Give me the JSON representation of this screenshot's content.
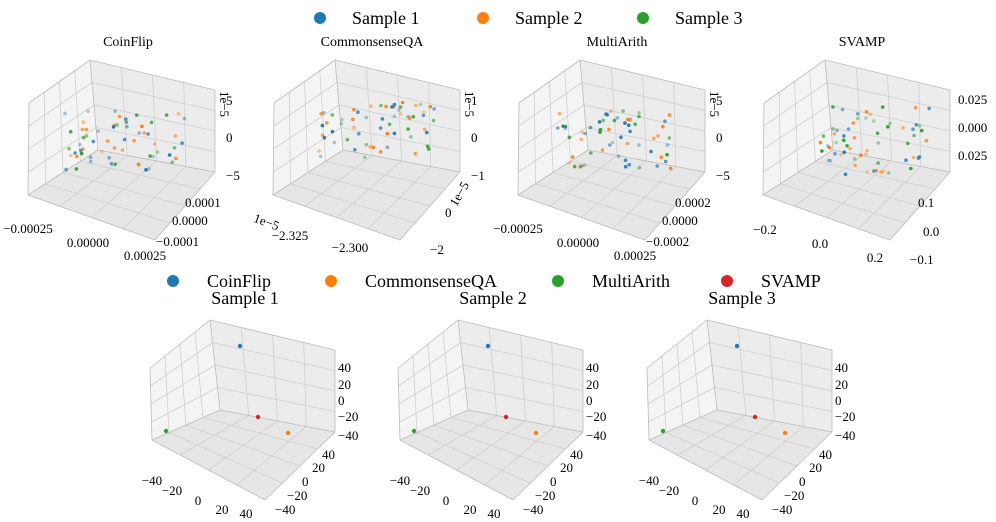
{
  "chart_data": [
    {
      "type": "scatter",
      "title": "CoinFlip",
      "projection": "3d",
      "legend": "top-center",
      "series_names": [
        "Sample 1",
        "Sample 2",
        "Sample 3"
      ],
      "x_ticks": [
        "−0.00025",
        "0.00000",
        "0.00025"
      ],
      "y_ticks": [
        "0.0001",
        "0.0000",
        "−0.0001"
      ],
      "z_ticks": [
        "5",
        "0",
        "−5"
      ],
      "z_offset": "1e−5",
      "point_colors": [
        "#1f77b4",
        "#ff7f0e",
        "#2ca02c"
      ]
    },
    {
      "type": "scatter",
      "title": "CommonsenseQA",
      "projection": "3d",
      "series_names": [
        "Sample 1",
        "Sample 2",
        "Sample 3"
      ],
      "x_ticks": [
        "−2.325",
        "−2.300"
      ],
      "x_offset": "1e−5",
      "y_ticks": [
        "−2",
        "0"
      ],
      "y_offset": "1e−5",
      "z_ticks": [
        "1",
        "0",
        "−1"
      ],
      "z_offset": "1e−5",
      "point_colors": [
        "#1f77b4",
        "#ff7f0e",
        "#2ca02c"
      ]
    },
    {
      "type": "scatter",
      "title": "MultiArith",
      "projection": "3d",
      "series_names": [
        "Sample 1",
        "Sample 2",
        "Sample 3"
      ],
      "x_ticks": [
        "−0.00025",
        "0.00000",
        "0.00025"
      ],
      "y_ticks": [
        "0.0002",
        "0.0000",
        "−0.0002"
      ],
      "z_ticks": [
        "5",
        "0",
        "−5"
      ],
      "z_offset": "1e−5",
      "point_colors": [
        "#1f77b4",
        "#ff7f0e",
        "#2ca02c"
      ]
    },
    {
      "type": "scatter",
      "title": "SVAMP",
      "projection": "3d",
      "series_names": [
        "Sample 1",
        "Sample 2",
        "Sample 3"
      ],
      "x_ticks": [
        "−0.2",
        "0.0",
        "0.2"
      ],
      "y_ticks": [
        "0.1",
        "0.0",
        "−0.1"
      ],
      "z_ticks": [
        "0.025",
        "0.000",
        "0.025"
      ],
      "point_colors": [
        "#1f77b4",
        "#ff7f0e",
        "#2ca02c"
      ]
    },
    {
      "type": "scatter",
      "title": "Sample 1",
      "projection": "3d",
      "legend": "top-center",
      "series_names": [
        "CoinFlip",
        "CommonsenseQA",
        "MultiArith",
        "SVAMP"
      ],
      "x_ticks": [
        "−40",
        "−20",
        "0",
        "20",
        "40"
      ],
      "y_ticks": [
        "40",
        "20",
        "0",
        "−20",
        "−40"
      ],
      "z_ticks": [
        "40",
        "20",
        "0",
        "−20",
        "−40"
      ],
      "point_colors": [
        "#1f77b4",
        "#ff7f0e",
        "#2ca02c",
        "#d62728"
      ]
    },
    {
      "type": "scatter",
      "title": "Sample 2",
      "projection": "3d",
      "series_names": [
        "CoinFlip",
        "CommonsenseQA",
        "MultiArith",
        "SVAMP"
      ],
      "x_ticks": [
        "−40",
        "−20",
        "0",
        "20",
        "40"
      ],
      "y_ticks": [
        "40",
        "20",
        "0",
        "−20",
        "−40"
      ],
      "z_ticks": [
        "40",
        "20",
        "0",
        "−20",
        "−40"
      ],
      "point_colors": [
        "#1f77b4",
        "#ff7f0e",
        "#2ca02c",
        "#d62728"
      ]
    },
    {
      "type": "scatter",
      "title": "Sample 3",
      "projection": "3d",
      "series_names": [
        "CoinFlip",
        "CommonsenseQA",
        "MultiArith",
        "SVAMP"
      ],
      "x_ticks": [
        "−40",
        "−20",
        "0",
        "20",
        "40"
      ],
      "y_ticks": [
        "40",
        "20",
        "0",
        "−20",
        "−40"
      ],
      "z_ticks": [
        "40",
        "20",
        "0",
        "−20",
        "−40"
      ],
      "point_colors": [
        "#1f77b4",
        "#ff7f0e",
        "#2ca02c",
        "#d62728"
      ]
    }
  ],
  "legends": {
    "top": {
      "entries": [
        {
          "label": "Sample 1",
          "color": "#1f77b4"
        },
        {
          "label": "Sample 2",
          "color": "#ff7f0e"
        },
        {
          "label": "Sample 3",
          "color": "#2ca02c"
        }
      ]
    },
    "bottom": {
      "entries": [
        {
          "label": "CoinFlip",
          "color": "#1f77b4"
        },
        {
          "label": "CommonsenseQA",
          "color": "#ff7f0e"
        },
        {
          "label": "MultiArith",
          "color": "#2ca02c"
        },
        {
          "label": "SVAMP",
          "color": "#d62728"
        }
      ]
    }
  }
}
